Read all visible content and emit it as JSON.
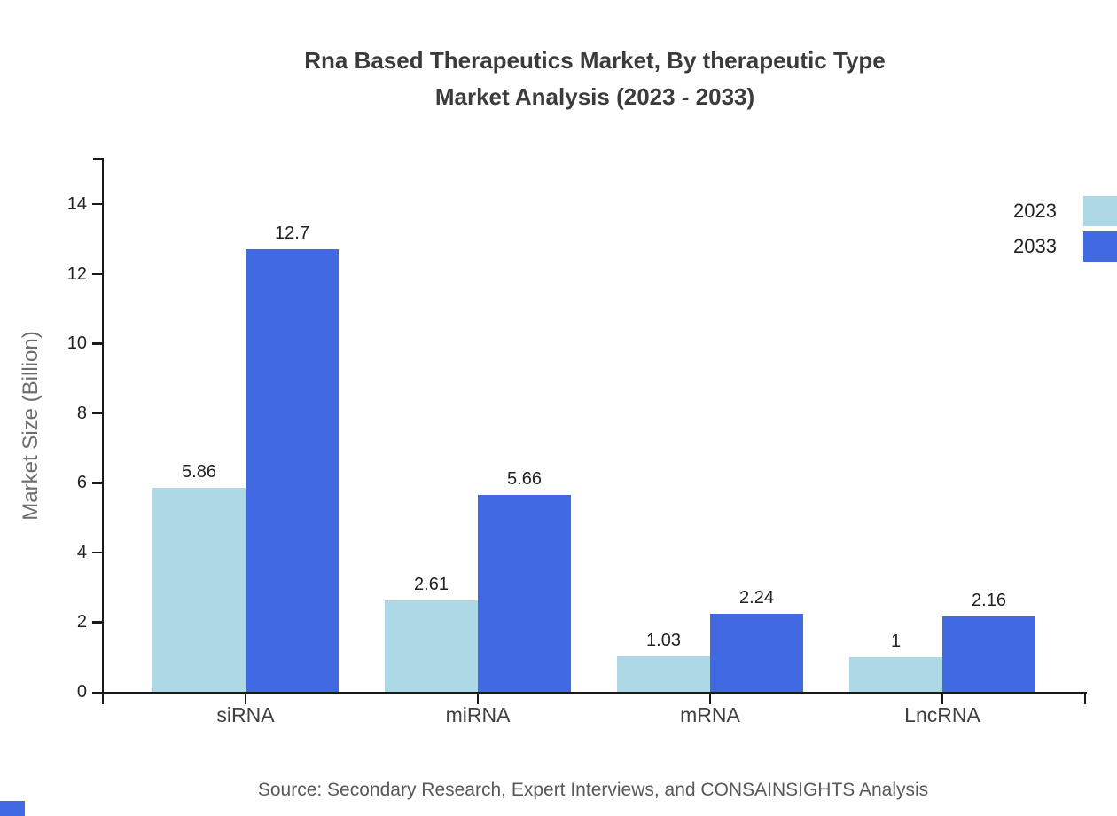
{
  "chart_data": {
    "type": "bar",
    "title_line1": "Rna Based Therapeutics Market, By therapeutic Type",
    "title_line2": "Market Analysis (2023 - 2033)",
    "categories": [
      "siRNA",
      "miRNA",
      "mRNA",
      "LncRNA"
    ],
    "series": [
      {
        "name": "2023",
        "color": "#add8e6",
        "values": [
          5.86,
          2.61,
          1.03,
          1
        ],
        "labels": [
          "5.86",
          "2.61",
          "1.03",
          "1"
        ]
      },
      {
        "name": "2033",
        "color": "#4169e1",
        "values": [
          12.7,
          5.66,
          2.24,
          2.16
        ],
        "labels": [
          "12.7",
          "5.66",
          "2.24",
          "2.16"
        ]
      }
    ],
    "xlabel": "",
    "ylabel": "Market Size (Billion)",
    "yticks": [
      0,
      2,
      4,
      6,
      8,
      10,
      12,
      14
    ],
    "ylim": [
      0,
      15.3
    ],
    "grid": false,
    "legend_position": "top-right",
    "source": "Source: Secondary Research, Expert Interviews, and CONSAINSIGHTS Analysis"
  },
  "colors": {
    "axis": "#1a1a1a",
    "tick_label": "#222222",
    "category_label": "#3f3f3f",
    "value_label": "#222222",
    "title": "#3b3b3b",
    "ylabel": "#6e6e6e",
    "source": "#595959",
    "background": "#ffffff",
    "brand_mark": "#4169e1"
  }
}
